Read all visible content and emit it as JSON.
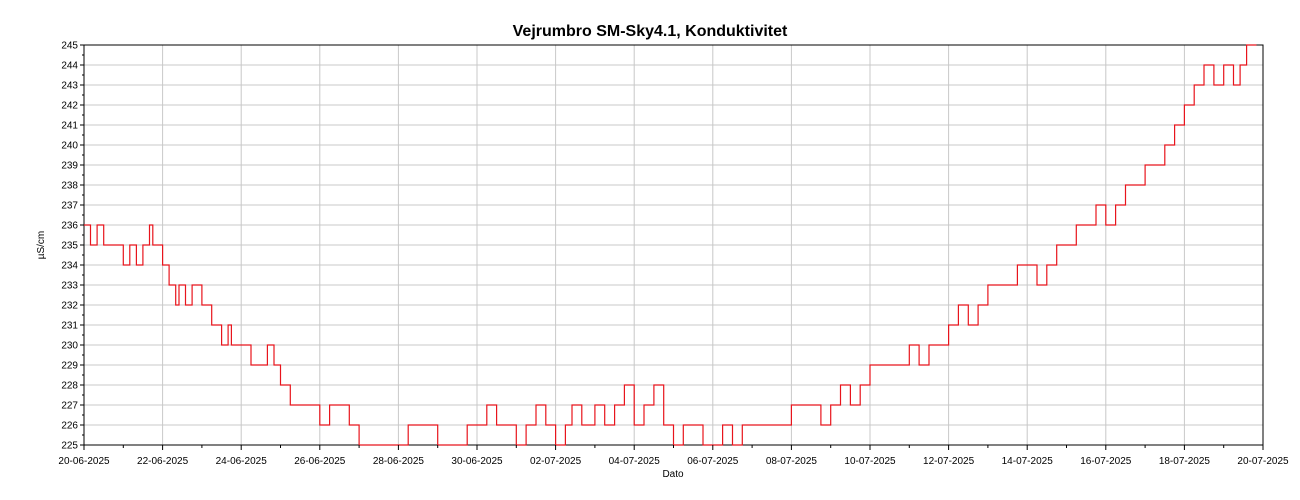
{
  "chart_data": {
    "type": "line",
    "title": "Vejrumbro SM-Sky4.1, Konduktivitet",
    "xlabel": "Dato",
    "ylabel": "µS/cm",
    "xlim": [
      "2025-06-20",
      "2025-07-20"
    ],
    "ylim": [
      225,
      245
    ],
    "grid": true,
    "legend": "none",
    "x_ticks": [
      "20-06-2025",
      "22-06-2025",
      "24-06-2025",
      "26-06-2025",
      "28-06-2025",
      "30-06-2025",
      "02-07-2025",
      "04-07-2025",
      "06-07-2025",
      "08-07-2025",
      "10-07-2025",
      "12-07-2025",
      "14-07-2025",
      "16-07-2025",
      "18-07-2025",
      "20-07-2025"
    ],
    "y_ticks": [
      225,
      226,
      227,
      228,
      229,
      230,
      231,
      232,
      233,
      234,
      235,
      236,
      237,
      238,
      239,
      240,
      241,
      242,
      243,
      244,
      245
    ],
    "series": [
      {
        "color": "#e8141c",
        "points": [
          [
            "2025-06-20 00:00",
            236
          ],
          [
            "2025-06-20 04:00",
            235
          ],
          [
            "2025-06-20 08:00",
            236
          ],
          [
            "2025-06-20 12:00",
            235
          ],
          [
            "2025-06-20 18:00",
            235
          ],
          [
            "2025-06-21 00:00",
            234
          ],
          [
            "2025-06-21 04:00",
            235
          ],
          [
            "2025-06-21 08:00",
            234
          ],
          [
            "2025-06-21 12:00",
            235
          ],
          [
            "2025-06-21 16:00",
            236
          ],
          [
            "2025-06-21 18:00",
            235
          ],
          [
            "2025-06-22 00:00",
            234
          ],
          [
            "2025-06-22 04:00",
            233
          ],
          [
            "2025-06-22 08:00",
            232
          ],
          [
            "2025-06-22 10:00",
            233
          ],
          [
            "2025-06-22 14:00",
            232
          ],
          [
            "2025-06-22 18:00",
            233
          ],
          [
            "2025-06-23 00:00",
            232
          ],
          [
            "2025-06-23 06:00",
            231
          ],
          [
            "2025-06-23 12:00",
            230
          ],
          [
            "2025-06-23 16:00",
            231
          ],
          [
            "2025-06-23 18:00",
            230
          ],
          [
            "2025-06-24 00:00",
            230
          ],
          [
            "2025-06-24 06:00",
            229
          ],
          [
            "2025-06-24 12:00",
            229
          ],
          [
            "2025-06-24 16:00",
            230
          ],
          [
            "2025-06-24 20:00",
            229
          ],
          [
            "2025-06-25 00:00",
            228
          ],
          [
            "2025-06-25 06:00",
            227
          ],
          [
            "2025-06-25 12:00",
            227
          ],
          [
            "2025-06-25 18:00",
            227
          ],
          [
            "2025-06-26 00:00",
            226
          ],
          [
            "2025-06-26 06:00",
            227
          ],
          [
            "2025-06-26 12:00",
            227
          ],
          [
            "2025-06-26 18:00",
            226
          ],
          [
            "2025-06-27 00:00",
            225
          ],
          [
            "2025-06-27 12:00",
            225
          ],
          [
            "2025-06-28 00:00",
            225
          ],
          [
            "2025-06-28 06:00",
            226
          ],
          [
            "2025-06-28 18:00",
            226
          ],
          [
            "2025-06-29 00:00",
            225
          ],
          [
            "2025-06-29 12:00",
            225
          ],
          [
            "2025-06-29 18:00",
            226
          ],
          [
            "2025-06-30 00:00",
            226
          ],
          [
            "2025-06-30 06:00",
            227
          ],
          [
            "2025-06-30 12:00",
            226
          ],
          [
            "2025-06-30 18:00",
            226
          ],
          [
            "2025-07-01 00:00",
            225
          ],
          [
            "2025-07-01 06:00",
            226
          ],
          [
            "2025-07-01 12:00",
            227
          ],
          [
            "2025-07-01 18:00",
            226
          ],
          [
            "2025-07-02 00:00",
            225
          ],
          [
            "2025-07-02 06:00",
            226
          ],
          [
            "2025-07-02 10:00",
            227
          ],
          [
            "2025-07-02 16:00",
            226
          ],
          [
            "2025-07-03 00:00",
            227
          ],
          [
            "2025-07-03 06:00",
            226
          ],
          [
            "2025-07-03 12:00",
            227
          ],
          [
            "2025-07-03 18:00",
            228
          ],
          [
            "2025-07-04 00:00",
            226
          ],
          [
            "2025-07-04 06:00",
            227
          ],
          [
            "2025-07-04 12:00",
            228
          ],
          [
            "2025-07-04 18:00",
            226
          ],
          [
            "2025-07-05 00:00",
            225
          ],
          [
            "2025-07-05 06:00",
            226
          ],
          [
            "2025-07-05 12:00",
            226
          ],
          [
            "2025-07-05 18:00",
            225
          ],
          [
            "2025-07-06 00:00",
            225
          ],
          [
            "2025-07-06 06:00",
            226
          ],
          [
            "2025-07-06 12:00",
            225
          ],
          [
            "2025-07-06 18:00",
            226
          ],
          [
            "2025-07-07 00:00",
            226
          ],
          [
            "2025-07-07 12:00",
            226
          ],
          [
            "2025-07-08 00:00",
            227
          ],
          [
            "2025-07-08 12:00",
            227
          ],
          [
            "2025-07-08 18:00",
            226
          ],
          [
            "2025-07-09 00:00",
            227
          ],
          [
            "2025-07-09 06:00",
            228
          ],
          [
            "2025-07-09 12:00",
            227
          ],
          [
            "2025-07-09 18:00",
            228
          ],
          [
            "2025-07-10 00:00",
            229
          ],
          [
            "2025-07-10 12:00",
            229
          ],
          [
            "2025-07-10 18:00",
            229
          ],
          [
            "2025-07-11 00:00",
            230
          ],
          [
            "2025-07-11 06:00",
            229
          ],
          [
            "2025-07-11 12:00",
            230
          ],
          [
            "2025-07-11 18:00",
            230
          ],
          [
            "2025-07-12 00:00",
            231
          ],
          [
            "2025-07-12 06:00",
            232
          ],
          [
            "2025-07-12 12:00",
            231
          ],
          [
            "2025-07-12 18:00",
            232
          ],
          [
            "2025-07-13 00:00",
            233
          ],
          [
            "2025-07-13 12:00",
            233
          ],
          [
            "2025-07-13 18:00",
            234
          ],
          [
            "2025-07-14 00:00",
            234
          ],
          [
            "2025-07-14 06:00",
            233
          ],
          [
            "2025-07-14 12:00",
            234
          ],
          [
            "2025-07-14 18:00",
            235
          ],
          [
            "2025-07-15 00:00",
            235
          ],
          [
            "2025-07-15 06:00",
            236
          ],
          [
            "2025-07-15 12:00",
            236
          ],
          [
            "2025-07-15 18:00",
            237
          ],
          [
            "2025-07-16 00:00",
            236
          ],
          [
            "2025-07-16 06:00",
            237
          ],
          [
            "2025-07-16 12:00",
            238
          ],
          [
            "2025-07-16 18:00",
            238
          ],
          [
            "2025-07-17 00:00",
            239
          ],
          [
            "2025-07-17 12:00",
            240
          ],
          [
            "2025-07-17 18:00",
            241
          ],
          [
            "2025-07-18 00:00",
            242
          ],
          [
            "2025-07-18 06:00",
            243
          ],
          [
            "2025-07-18 12:00",
            244
          ],
          [
            "2025-07-18 18:00",
            243
          ],
          [
            "2025-07-19 00:00",
            244
          ],
          [
            "2025-07-19 06:00",
            243
          ],
          [
            "2025-07-19 10:00",
            244
          ],
          [
            "2025-07-19 14:00",
            245
          ],
          [
            "2025-07-19 20:00",
            245
          ]
        ]
      }
    ]
  }
}
